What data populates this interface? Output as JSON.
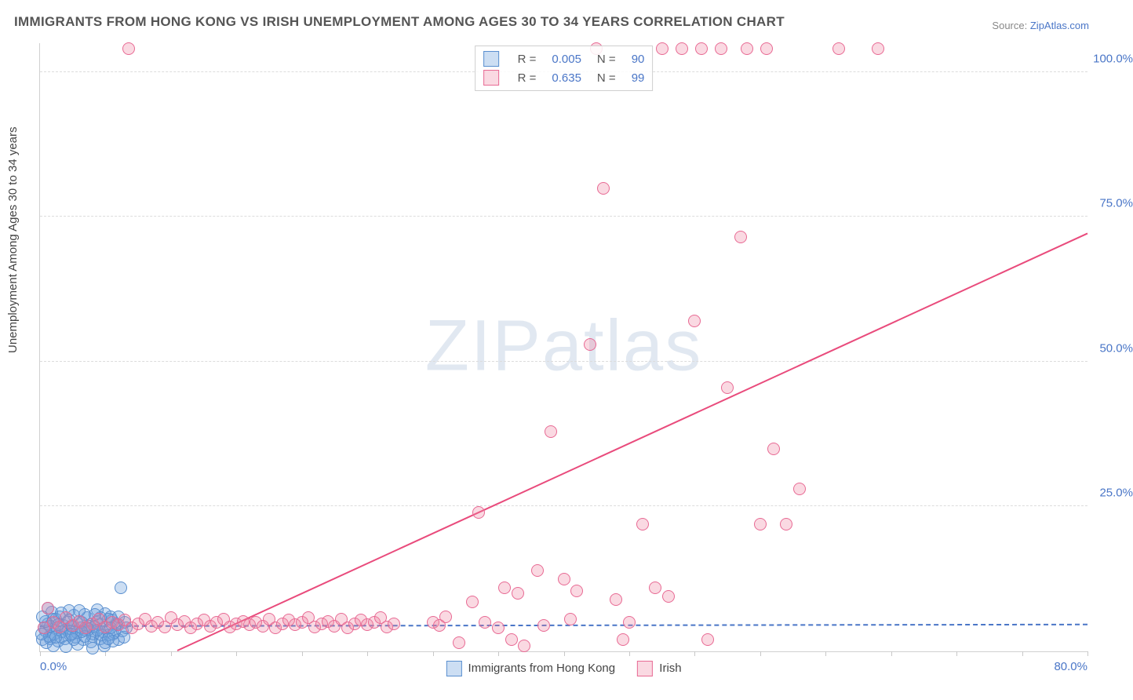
{
  "title": "IMMIGRANTS FROM HONG KONG VS IRISH UNEMPLOYMENT AMONG AGES 30 TO 34 YEARS CORRELATION CHART",
  "source_label": "Source:",
  "source_value": "ZipAtlas.com",
  "ylabel": "Unemployment Among Ages 30 to 34 years",
  "watermark_a": "ZIP",
  "watermark_b": "atlas",
  "chart": {
    "type": "scatter",
    "xlim": [
      0,
      80
    ],
    "ylim": [
      0,
      105
    ],
    "xticks": [
      0,
      5,
      10,
      15,
      20,
      25,
      30,
      35,
      40,
      45,
      50,
      55,
      60,
      65,
      70,
      75,
      80
    ],
    "xtick_labels_at": {
      "0": "0.0%",
      "80": "80.0%"
    },
    "ygrid": [
      25,
      50,
      75,
      100
    ],
    "ytick_labels": {
      "25": "25.0%",
      "50": "50.0%",
      "75": "75.0%",
      "100": "100.0%"
    },
    "background_color": "#ffffff",
    "grid_color": "#dcdcdc",
    "axis_color": "#d0d0d0",
    "label_color": "#4a76c7",
    "marker_radius": 8,
    "marker_stroke": 1.5,
    "series": [
      {
        "name": "Immigrants from Hong Kong",
        "key": "hk",
        "fill": "rgba(110,160,220,0.35)",
        "stroke": "#5a8fcf",
        "R": "0.005",
        "N": "90",
        "trend": {
          "x1": 0,
          "y1": 4.2,
          "x2": 80,
          "y2": 4.5,
          "dashed": true,
          "color": "#4a76c7"
        },
        "points": [
          [
            0.2,
            2.0
          ],
          [
            0.4,
            3.5
          ],
          [
            0.6,
            4.8
          ],
          [
            0.8,
            2.2
          ],
          [
            1.0,
            5.5
          ],
          [
            1.1,
            3.0
          ],
          [
            1.3,
            4.0
          ],
          [
            1.5,
            6.0
          ],
          [
            1.6,
            2.5
          ],
          [
            1.8,
            4.5
          ],
          [
            2.0,
            3.8
          ],
          [
            2.1,
            5.0
          ],
          [
            2.3,
            2.8
          ],
          [
            2.5,
            4.2
          ],
          [
            2.6,
            6.2
          ],
          [
            2.8,
            3.2
          ],
          [
            3.0,
            5.2
          ],
          [
            3.1,
            4.0
          ],
          [
            3.3,
            2.0
          ],
          [
            3.5,
            3.6
          ],
          [
            3.6,
            5.8
          ],
          [
            3.8,
            4.4
          ],
          [
            4.0,
            2.6
          ],
          [
            4.1,
            3.0
          ],
          [
            4.3,
            5.0
          ],
          [
            4.5,
            4.6
          ],
          [
            4.6,
            2.2
          ],
          [
            4.8,
            3.4
          ],
          [
            5.0,
            6.5
          ],
          [
            5.1,
            4.0
          ],
          [
            5.3,
            2.8
          ],
          [
            5.5,
            5.4
          ],
          [
            5.7,
            3.2
          ],
          [
            5.8,
            4.8
          ],
          [
            6.0,
            2.0
          ],
          [
            6.2,
            11.0
          ],
          [
            0.5,
            1.5
          ],
          [
            0.9,
            6.8
          ],
          [
            1.4,
            1.8
          ],
          [
            2.2,
            7.0
          ],
          [
            2.9,
            1.2
          ],
          [
            3.4,
            6.4
          ],
          [
            3.9,
            1.6
          ],
          [
            4.4,
            7.2
          ],
          [
            4.9,
            1.0
          ],
          [
            5.4,
            6.0
          ],
          [
            0.3,
            4.0
          ],
          [
            0.7,
            2.6
          ],
          [
            1.2,
            5.6
          ],
          [
            1.7,
            3.4
          ],
          [
            2.4,
            4.4
          ],
          [
            2.7,
            2.4
          ],
          [
            3.2,
            5.0
          ],
          [
            3.7,
            3.8
          ],
          [
            4.2,
            4.2
          ],
          [
            4.7,
            2.8
          ],
          [
            5.2,
            5.6
          ],
          [
            5.6,
            3.0
          ],
          [
            5.9,
            4.6
          ],
          [
            0.1,
            3.0
          ],
          [
            1.9,
            2.2
          ],
          [
            6.3,
            3.5
          ],
          [
            6.5,
            5.0
          ],
          [
            0.6,
            7.5
          ],
          [
            1.0,
            1.0
          ],
          [
            2.0,
            0.8
          ],
          [
            3.0,
            7.0
          ],
          [
            4.0,
            0.5
          ],
          [
            5.0,
            1.5
          ],
          [
            0.8,
            4.4
          ],
          [
            1.6,
            6.6
          ],
          [
            2.6,
            2.0
          ],
          [
            3.6,
            4.0
          ],
          [
            4.6,
            5.8
          ],
          [
            5.6,
            1.8
          ],
          [
            0.4,
            5.2
          ],
          [
            1.4,
            4.6
          ],
          [
            2.4,
            3.0
          ],
          [
            3.4,
            2.6
          ],
          [
            4.4,
            3.6
          ],
          [
            5.4,
            4.0
          ],
          [
            0.2,
            6.0
          ],
          [
            1.2,
            2.4
          ],
          [
            2.2,
            5.4
          ],
          [
            3.2,
            3.4
          ],
          [
            4.2,
            6.4
          ],
          [
            5.2,
            2.2
          ],
          [
            6.0,
            6.0
          ],
          [
            6.4,
            2.5
          ],
          [
            6.6,
            4.0
          ]
        ]
      },
      {
        "name": "Irish",
        "key": "irish",
        "fill": "rgba(240,130,160,0.30)",
        "stroke": "#e86a94",
        "R": "0.635",
        "N": "99",
        "trend": {
          "x1": 10.5,
          "y1": 0,
          "x2": 80,
          "y2": 72,
          "dashed": false,
          "color": "#e94b7c"
        },
        "points": [
          [
            0.3,
            4.0
          ],
          [
            0.6,
            7.5
          ],
          [
            1.0,
            5.0
          ],
          [
            1.5,
            4.2
          ],
          [
            2.0,
            5.8
          ],
          [
            2.5,
            4.5
          ],
          [
            3.0,
            5.2
          ],
          [
            3.5,
            4.0
          ],
          [
            4.0,
            4.8
          ],
          [
            4.5,
            5.5
          ],
          [
            5.0,
            4.2
          ],
          [
            5.5,
            5.0
          ],
          [
            6.0,
            4.6
          ],
          [
            6.5,
            5.4
          ],
          [
            7.0,
            4.0
          ],
          [
            7.5,
            4.8
          ],
          [
            8.0,
            5.6
          ],
          [
            8.5,
            4.4
          ],
          [
            9.0,
            5.0
          ],
          [
            9.5,
            4.2
          ],
          [
            10.0,
            5.8
          ],
          [
            10.5,
            4.6
          ],
          [
            11.0,
            5.2
          ],
          [
            11.5,
            4.0
          ],
          [
            12.0,
            4.8
          ],
          [
            12.5,
            5.4
          ],
          [
            13.0,
            4.4
          ],
          [
            13.5,
            5.0
          ],
          [
            14.0,
            5.6
          ],
          [
            14.5,
            4.2
          ],
          [
            15.0,
            4.8
          ],
          [
            15.5,
            5.2
          ],
          [
            16.0,
            4.6
          ],
          [
            16.5,
            5.0
          ],
          [
            17.0,
            4.4
          ],
          [
            17.5,
            5.6
          ],
          [
            18.0,
            4.0
          ],
          [
            18.5,
            4.8
          ],
          [
            19.0,
            5.4
          ],
          [
            19.5,
            4.6
          ],
          [
            20.0,
            5.0
          ],
          [
            20.5,
            5.8
          ],
          [
            21.0,
            4.2
          ],
          [
            21.5,
            4.8
          ],
          [
            22.0,
            5.2
          ],
          [
            22.5,
            4.4
          ],
          [
            23.0,
            5.6
          ],
          [
            23.5,
            4.0
          ],
          [
            24.0,
            4.8
          ],
          [
            24.5,
            5.4
          ],
          [
            25.0,
            4.6
          ],
          [
            25.5,
            5.0
          ],
          [
            26.0,
            5.8
          ],
          [
            26.5,
            4.2
          ],
          [
            27.0,
            4.8
          ],
          [
            30.0,
            5.0
          ],
          [
            30.5,
            4.5
          ],
          [
            31.0,
            6.0
          ],
          [
            32.0,
            1.5
          ],
          [
            33.0,
            8.5
          ],
          [
            33.5,
            24.0
          ],
          [
            34.0,
            5.0
          ],
          [
            35.0,
            4.0
          ],
          [
            35.5,
            11.0
          ],
          [
            36.0,
            2.0
          ],
          [
            36.5,
            10.0
          ],
          [
            37.0,
            1.0
          ],
          [
            38.0,
            14.0
          ],
          [
            38.5,
            4.5
          ],
          [
            39.0,
            38.0
          ],
          [
            40.0,
            12.5
          ],
          [
            40.5,
            5.5
          ],
          [
            41.0,
            10.5
          ],
          [
            42.0,
            53.0
          ],
          [
            42.5,
            104.0
          ],
          [
            43.0,
            80.0
          ],
          [
            44.0,
            9.0
          ],
          [
            44.5,
            2.0
          ],
          [
            45.0,
            5.0
          ],
          [
            46.0,
            22.0
          ],
          [
            47.0,
            11.0
          ],
          [
            47.5,
            104.0
          ],
          [
            48.0,
            9.5
          ],
          [
            49.0,
            104.0
          ],
          [
            50.0,
            57.0
          ],
          [
            50.5,
            104.0
          ],
          [
            51.0,
            2.0
          ],
          [
            52.0,
            104.0
          ],
          [
            52.5,
            45.5
          ],
          [
            53.5,
            71.5
          ],
          [
            54.0,
            104.0
          ],
          [
            55.0,
            22.0
          ],
          [
            55.5,
            104.0
          ],
          [
            56.0,
            35.0
          ],
          [
            57.0,
            22.0
          ],
          [
            58.0,
            28.0
          ],
          [
            61.0,
            104.0
          ],
          [
            64.0,
            104.0
          ],
          [
            6.8,
            104.0
          ]
        ]
      }
    ],
    "xlegend": [
      {
        "label": "Immigrants from Hong Kong",
        "fill": "rgba(110,160,220,0.35)",
        "stroke": "#5a8fcf"
      },
      {
        "label": "Irish",
        "fill": "rgba(240,130,160,0.30)",
        "stroke": "#e86a94"
      }
    ]
  }
}
